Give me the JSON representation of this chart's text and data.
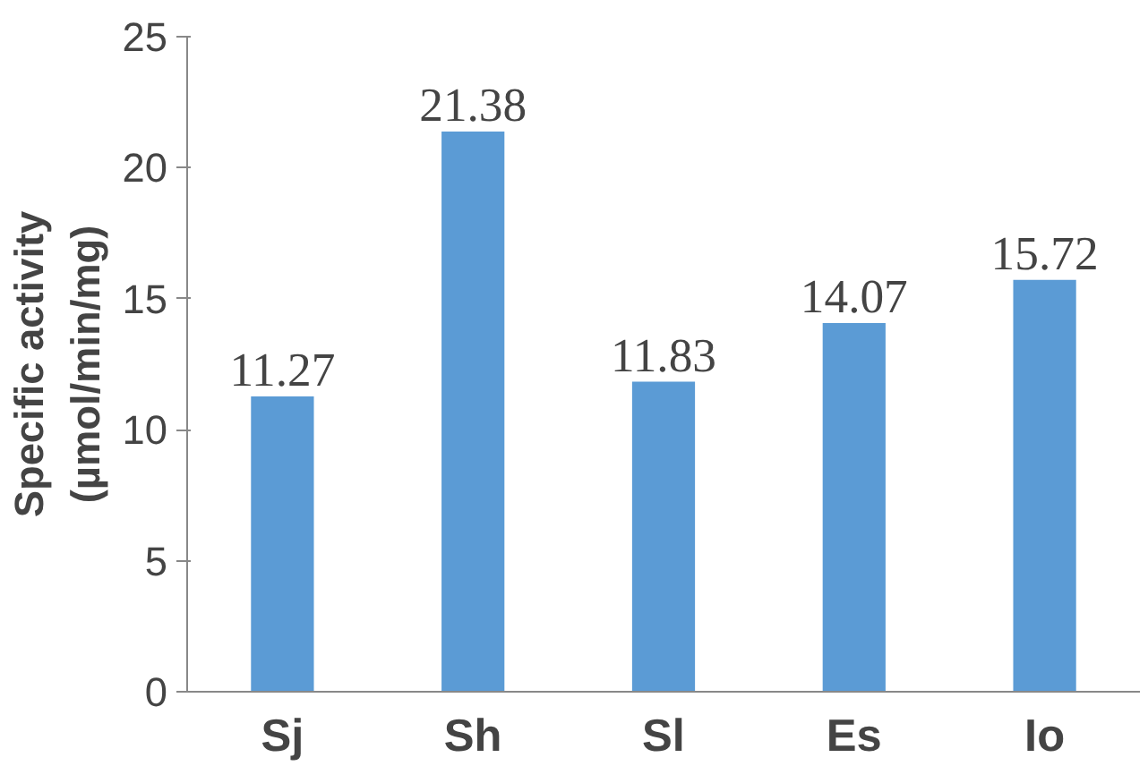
{
  "chart_data": {
    "type": "bar",
    "ylabel": "Specific activity\n(µmol/min/mg)",
    "categories": [
      "Sj",
      "Sh",
      "Sl",
      "Es",
      "Io"
    ],
    "values": [
      11.27,
      21.38,
      11.83,
      14.07,
      15.72
    ],
    "color": "#5b9bd5",
    "ylim": [
      0,
      25
    ],
    "yticks": [
      0,
      5,
      10,
      15,
      20,
      25
    ],
    "data_labels": true,
    "grid": false
  }
}
